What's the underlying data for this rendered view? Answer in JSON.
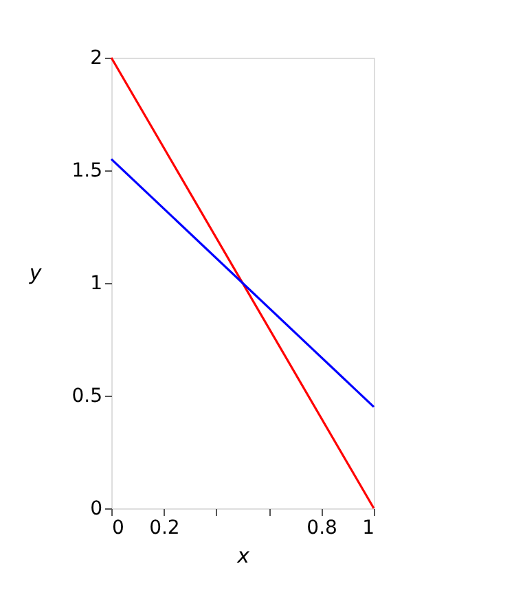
{
  "chart_data": {
    "type": "line",
    "xlabel": "x",
    "ylabel": "y",
    "x": [
      0,
      1
    ],
    "series": [
      {
        "color": "#ff0000",
        "values": [
          2,
          0
        ]
      },
      {
        "color": "#0000ff",
        "values": [
          1.55,
          0.45
        ]
      }
    ],
    "xlim": [
      0,
      1
    ],
    "ylim": [
      0,
      2
    ],
    "xticks": [
      0,
      0.2,
      {
        "value": 0.4,
        "label": null
      },
      {
        "value": 0.6,
        "label": null
      },
      0.8,
      1
    ],
    "yticks": [
      0,
      0.5,
      1,
      1.5,
      2
    ],
    "grid": false,
    "legend": false,
    "marker": "none",
    "line_style": "solid"
  }
}
